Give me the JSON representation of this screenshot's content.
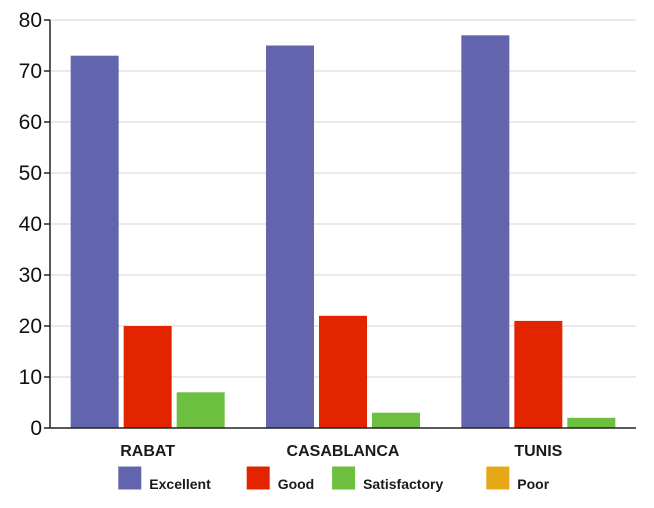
{
  "chart_data": {
    "type": "bar",
    "categories": [
      "RABAT",
      "CASABLANCA",
      "TUNIS"
    ],
    "series": [
      {
        "name": "Excellent",
        "values": [
          73,
          75,
          77
        ],
        "color": "#6264ad"
      },
      {
        "name": "Good",
        "values": [
          20,
          22,
          21
        ],
        "color": "#e32400"
      },
      {
        "name": "Satisfactory",
        "values": [
          7,
          3,
          2
        ],
        "color": "#6cbf3f"
      },
      {
        "name": "Poor",
        "values": [
          0,
          0,
          0
        ],
        "color": "#e6a816"
      }
    ],
    "ylim": [
      0,
      80
    ],
    "yticks": [
      0,
      10,
      20,
      30,
      40,
      50,
      60,
      70,
      80
    ],
    "grid": true,
    "legend": "bottom",
    "title": "",
    "xlabel": "",
    "ylabel": ""
  }
}
